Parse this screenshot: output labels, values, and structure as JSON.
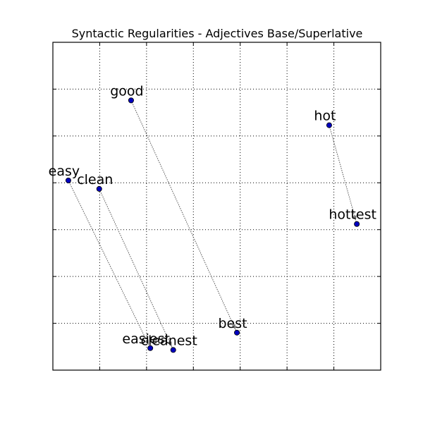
{
  "chart_data": {
    "type": "scatter",
    "title": "Syntactic Regularities - Adjectives Base/Superlative",
    "xlabel": "",
    "ylabel": "",
    "xlim": [
      -0.05,
      0.65
    ],
    "ylim": [
      -0.05,
      0.65
    ],
    "xticks": [
      0.05,
      0.15,
      0.25,
      0.35,
      0.45,
      0.55
    ],
    "yticks": [
      0.05,
      0.15,
      0.25,
      0.35,
      0.45,
      0.55
    ],
    "grid": true,
    "tick_labels_shown": false,
    "points": [
      {
        "label": "good",
        "x": 0.117,
        "y": 0.526
      },
      {
        "label": "best",
        "x": 0.343,
        "y": 0.03
      },
      {
        "label": "hot",
        "x": 0.54,
        "y": 0.473
      },
      {
        "label": "hottest",
        "x": 0.599,
        "y": 0.262
      },
      {
        "label": "easy",
        "x": -0.017,
        "y": 0.355
      },
      {
        "label": "easiest",
        "x": 0.158,
        "y": -0.003
      },
      {
        "label": "clean",
        "x": 0.049,
        "y": 0.337
      },
      {
        "label": "cleanest",
        "x": 0.207,
        "y": -0.007
      }
    ],
    "pairs": [
      {
        "from": "good",
        "to": "best"
      },
      {
        "from": "hot",
        "to": "hottest"
      },
      {
        "from": "easy",
        "to": "easiest"
      },
      {
        "from": "clean",
        "to": "cleanest"
      }
    ],
    "colors": {
      "point": "#0000bf",
      "line": "#555555"
    }
  }
}
